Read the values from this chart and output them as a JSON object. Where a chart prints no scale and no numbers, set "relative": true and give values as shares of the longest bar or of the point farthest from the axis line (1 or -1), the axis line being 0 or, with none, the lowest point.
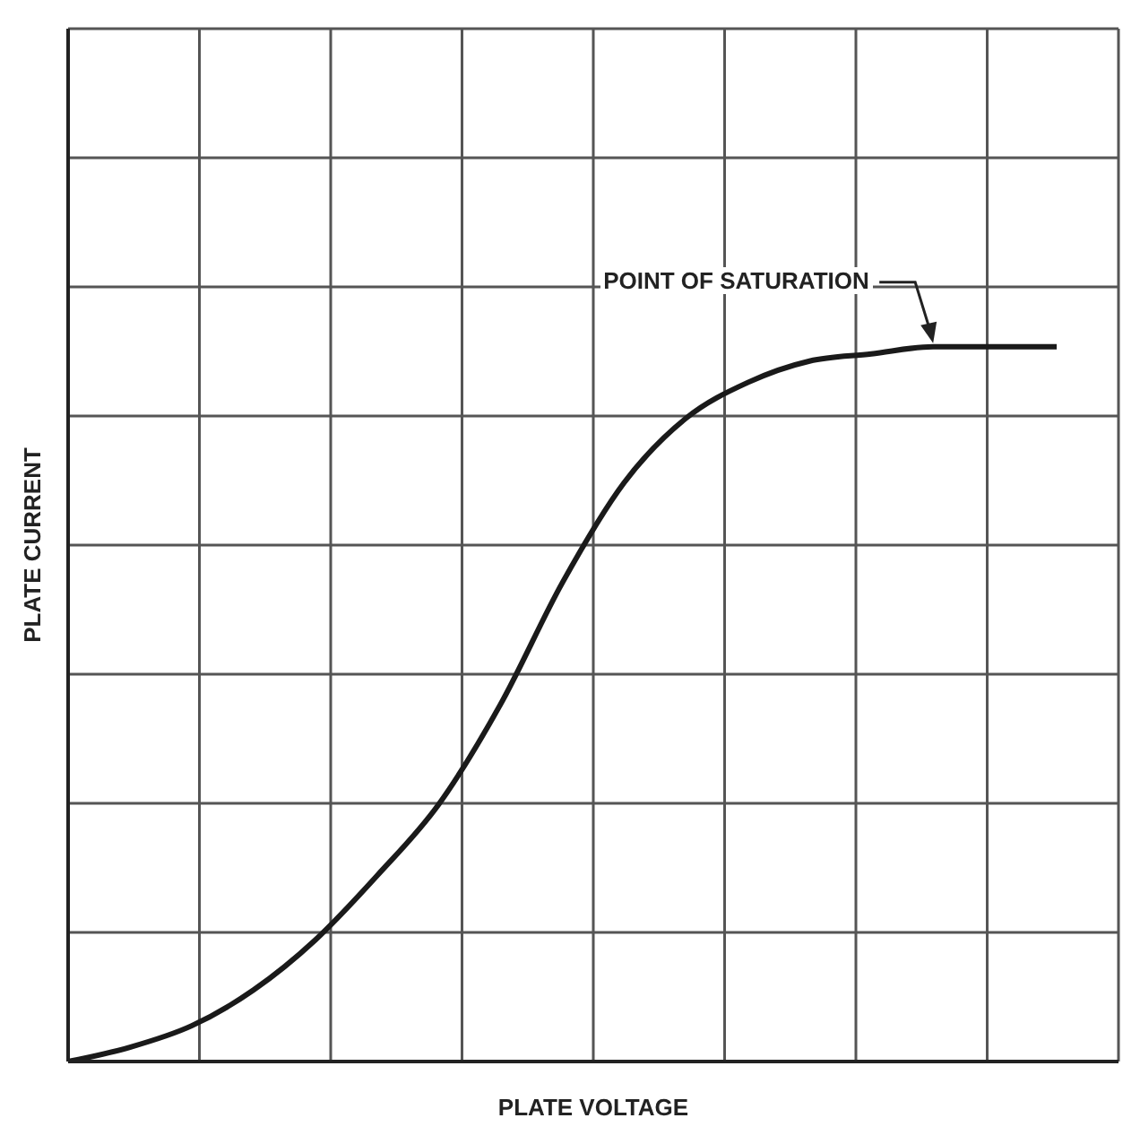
{
  "chart_data": {
    "type": "line",
    "relative": true,
    "xlabel": "PLATE VOLTAGE",
    "ylabel": "PLATE CURRENT",
    "categories": [
      null,
      null,
      null,
      null,
      null,
      null,
      null,
      null,
      null,
      null,
      null,
      null,
      null,
      null,
      null,
      null,
      null,
      null
    ],
    "series": [
      {
        "color": "#1a1a1a",
        "values": [
          0,
          0.02,
          0.05,
          0.1,
          0.17,
          0.26,
          0.36,
          0.5,
          0.67,
          0.81,
          0.9,
          0.95,
          0.98,
          0.99,
          1,
          1,
          1,
          null
        ]
      }
    ],
    "annotations": [
      "POINT OF SATURATION"
    ],
    "grid": true,
    "marker": "none",
    "line_style": "solid"
  }
}
